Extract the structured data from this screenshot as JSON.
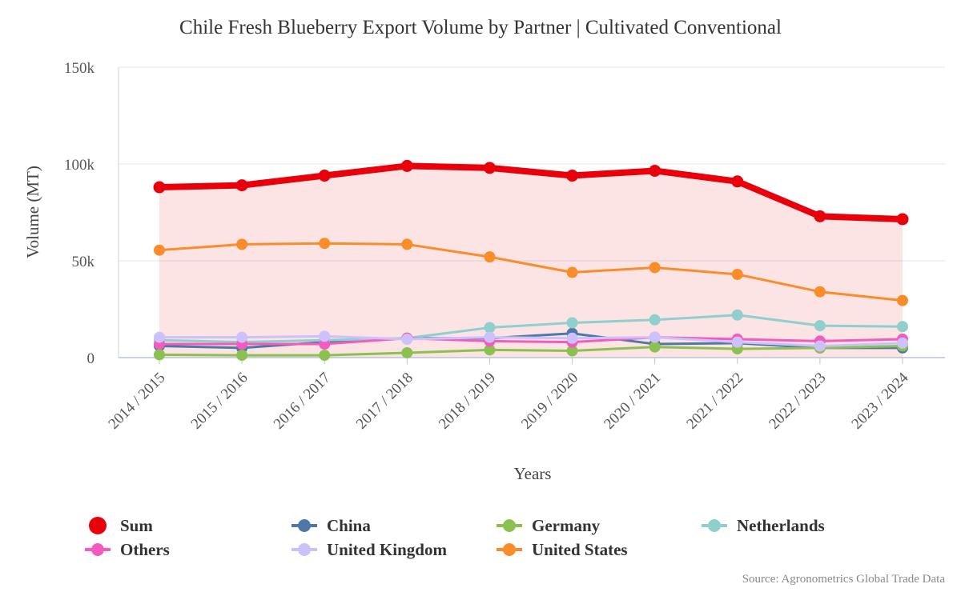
{
  "chart_data": {
    "type": "line",
    "title": "Chile Fresh Blueberry Export Volume by Partner | Cultivated Conventional",
    "xlabel": "Years",
    "ylabel": "Volume (MT)",
    "ylim": [
      0,
      150000
    ],
    "yticks": [
      {
        "value": 0,
        "label": "0"
      },
      {
        "value": 50000,
        "label": "50k"
      },
      {
        "value": 100000,
        "label": "100k"
      },
      {
        "value": 150000,
        "label": "150k"
      }
    ],
    "categories": [
      "2014 / 2015",
      "2015 / 2016",
      "2016 / 2017",
      "2017 / 2018",
      "2018 / 2019",
      "2019 / 2020",
      "2020 / 2021",
      "2021 / 2022",
      "2022 / 2023",
      "2023 / 2024"
    ],
    "grid": true,
    "legend_position": "bottom",
    "source": "Source: Agronometrics Global Trade Data",
    "series": [
      {
        "name": "Sum",
        "color": "#e8000b",
        "values": [
          88000,
          89000,
          94000,
          99000,
          98000,
          94000,
          96500,
          91000,
          73000,
          71500
        ]
      },
      {
        "name": "China",
        "color": "#4e79a7",
        "values": [
          6000,
          5000,
          8000,
          10000,
          10000,
          12500,
          7000,
          7500,
          5000,
          5000
        ]
      },
      {
        "name": "Germany",
        "color": "#8cc152",
        "values": [
          1500,
          1200,
          1200,
          2500,
          4000,
          3500,
          5500,
          4500,
          5000,
          6000
        ]
      },
      {
        "name": "Netherlands",
        "color": "#8fcfcc",
        "values": [
          9000,
          8000,
          9000,
          10000,
          15500,
          18000,
          19500,
          22000,
          16500,
          16000
        ]
      },
      {
        "name": "Others",
        "color": "#f35bbf",
        "values": [
          7000,
          7000,
          7000,
          10000,
          8500,
          8000,
          10500,
          9500,
          8500,
          9500
        ]
      },
      {
        "name": "United Kingdom",
        "color": "#cdc1fb",
        "values": [
          10500,
          10500,
          11000,
          9500,
          10500,
          10000,
          10500,
          8000,
          6000,
          7500
        ]
      },
      {
        "name": "United States",
        "color": "#fa8c2a",
        "values": [
          55500,
          58500,
          59000,
          58500,
          52000,
          44000,
          46500,
          43000,
          34000,
          29500
        ]
      }
    ]
  }
}
